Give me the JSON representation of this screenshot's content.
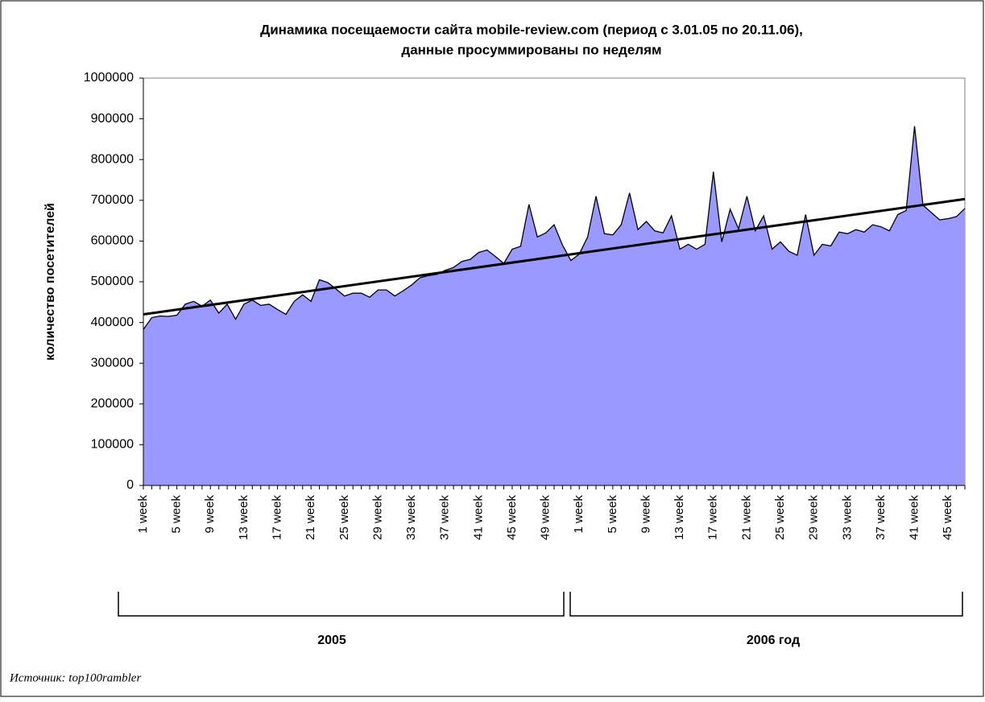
{
  "chart_data": {
    "type": "area",
    "title": [
      "Динамика посещаемости сайта mobile-review.com (период с 3.01.05 по 20.11.06),",
      "данные просуммированы по неделям"
    ],
    "y_label": "количество посетителей",
    "source": "Источник: top100rambler",
    "groups": [
      "2005",
      "2006 год"
    ],
    "categories": [
      "1 week",
      null,
      null,
      null,
      "5 week",
      null,
      null,
      null,
      "9 week",
      null,
      null,
      null,
      "13 week",
      null,
      null,
      null,
      "17 week",
      null,
      null,
      null,
      "21 week",
      null,
      null,
      null,
      "25 week",
      null,
      null,
      null,
      "29 week",
      null,
      null,
      null,
      "33 week",
      null,
      null,
      null,
      "37 week",
      null,
      null,
      null,
      "41 week",
      null,
      null,
      null,
      "45 week",
      null,
      null,
      null,
      "49 week",
      null,
      null,
      null,
      "1 week",
      null,
      null,
      null,
      "5 week",
      null,
      null,
      null,
      "9 week",
      null,
      null,
      null,
      "13 week",
      null,
      null,
      null,
      "17 week",
      null,
      null,
      null,
      "21 week",
      null,
      null,
      null,
      "25 week",
      null,
      null,
      null,
      "29 week",
      null,
      null,
      null,
      "33 week",
      null,
      null,
      null,
      "37 week",
      null,
      null,
      null,
      "41 week",
      null,
      null,
      null,
      "45 week",
      null,
      null
    ],
    "series": [
      {
        "color": "#9999ff",
        "values": [
          383000,
          412000,
          416000,
          415000,
          418000,
          445000,
          452000,
          440000,
          455000,
          423000,
          445000,
          408000,
          445000,
          455000,
          442000,
          445000,
          432000,
          420000,
          452000,
          468000,
          452000,
          505000,
          498000,
          482000,
          465000,
          472000,
          472000,
          462000,
          480000,
          480000,
          465000,
          478000,
          492000,
          510000,
          515000,
          518000,
          528000,
          535000,
          550000,
          555000,
          572000,
          578000,
          562000,
          545000,
          580000,
          587000,
          690000,
          610000,
          620000,
          640000,
          590000,
          552000,
          568000,
          610000,
          710000,
          618000,
          615000,
          640000,
          718000,
          628000,
          648000,
          625000,
          620000,
          662000,
          580000,
          592000,
          580000,
          592000,
          770000,
          598000,
          678000,
          630000,
          710000,
          625000,
          662000,
          580000,
          598000,
          575000,
          565000,
          665000,
          565000,
          592000,
          588000,
          622000,
          618000,
          628000,
          622000,
          640000,
          635000,
          625000,
          665000,
          675000,
          882000,
          688000,
          670000,
          652000,
          655000,
          660000,
          680000
        ]
      }
    ],
    "trend": {
      "color": "#000000",
      "values": [
        420000,
        703000
      ]
    },
    "ylim": [
      0,
      1000000
    ],
    "yticks": [
      0,
      100000,
      200000,
      300000,
      400000,
      500000,
      600000,
      700000,
      800000,
      900000,
      1000000
    ]
  }
}
